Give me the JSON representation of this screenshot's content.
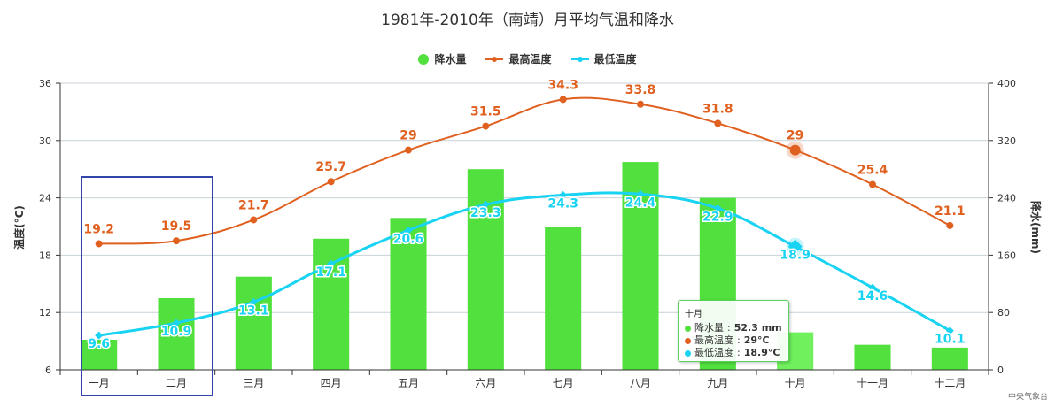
{
  "chart_data": {
    "type": "bar+line",
    "title": "1981年-2010年（南靖）月平均气温和降水",
    "categories": [
      "一月",
      "二月",
      "三月",
      "四月",
      "五月",
      "六月",
      "七月",
      "八月",
      "九月",
      "十月",
      "十一月",
      "十二月"
    ],
    "series": [
      {
        "name": "降水量",
        "type": "bar",
        "axis": "right",
        "color": "#52e03e",
        "values": [
          42,
          100,
          130,
          183,
          212,
          280,
          200,
          290,
          240,
          52.3,
          35,
          31
        ]
      },
      {
        "name": "最高温度",
        "type": "line",
        "axis": "left",
        "color": "#e06020",
        "values": [
          19.2,
          19.5,
          21.7,
          25.7,
          29,
          31.5,
          34.3,
          33.8,
          31.8,
          29,
          25.4,
          21.1
        ]
      },
      {
        "name": "最低温度",
        "type": "line",
        "axis": "left",
        "color": "#19d3f3",
        "values": [
          9.6,
          10.9,
          13.1,
          17.1,
          20.6,
          23.3,
          24.3,
          24.4,
          22.9,
          18.9,
          14.6,
          10.1
        ]
      }
    ],
    "y_left": {
      "label": "温度(°C)",
      "min": 6,
      "max": 36,
      "ticks": [
        6,
        12,
        18,
        24,
        30,
        36
      ]
    },
    "y_right": {
      "label": "降水(mm)",
      "min": 0,
      "max": 400,
      "ticks": [
        0,
        80,
        160,
        240,
        320,
        400
      ]
    },
    "grid": true,
    "legend_position": "top-center",
    "highlighted_category_index": 9,
    "selection_range": [
      0,
      1
    ]
  },
  "tooltip": {
    "title": "十月",
    "rows": [
      {
        "label": "降水量",
        "value": "52.3 mm",
        "color": "#52e03e"
      },
      {
        "label": "最高温度",
        "value": "29°C",
        "color": "#e06020"
      },
      {
        "label": "最低温度",
        "value": "18.9°C",
        "color": "#19d3f3"
      }
    ]
  },
  "credit": "中央气象台"
}
